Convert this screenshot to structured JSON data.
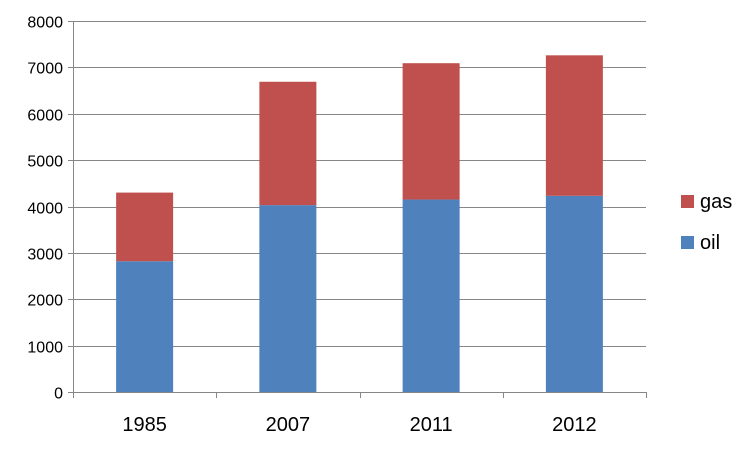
{
  "chart_data": {
    "type": "bar",
    "stacked": true,
    "categories": [
      "1985",
      "2007",
      "2011",
      "2012"
    ],
    "series": [
      {
        "name": "oil",
        "values": [
          2820,
          4030,
          4150,
          4230
        ],
        "color": "#4f81bd"
      },
      {
        "name": "gas",
        "values": [
          1480,
          2660,
          2940,
          3030
        ],
        "color": "#c0504d"
      }
    ],
    "title": "",
    "xlabel": "",
    "ylabel": "",
    "ylim": [
      0,
      8000
    ],
    "yticks": [
      0,
      1000,
      2000,
      3000,
      4000,
      5000,
      6000,
      7000,
      8000
    ],
    "grid": true,
    "legend_position": "right",
    "legend_order": [
      "gas",
      "oil"
    ],
    "colors": {
      "gridline": "#868686",
      "axis": "#868686"
    }
  }
}
